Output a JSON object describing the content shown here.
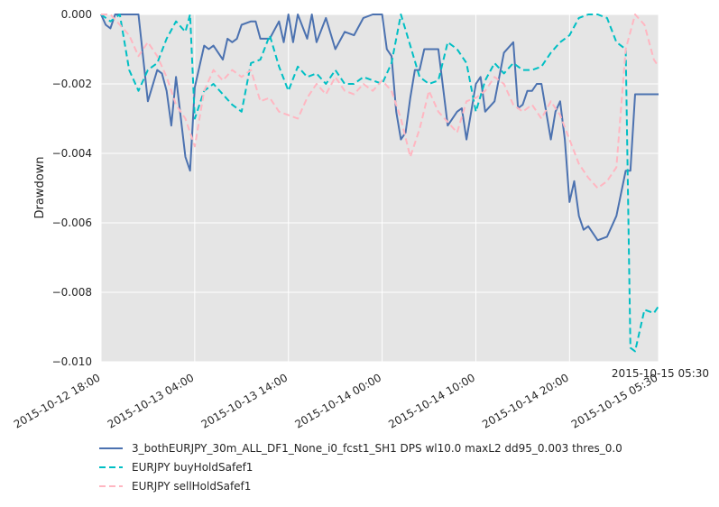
{
  "chart_data": {
    "type": "line",
    "title": "",
    "xlabel": "",
    "ylabel": "Drawdown",
    "x_start": "2015-10-12 18:00",
    "x_end": "2015-10-15 05:30",
    "x_corner_label": "2015-10-15 05:30",
    "x_ticks": [
      {
        "t": "2015-10-12 18:00",
        "label": "2015-10-12 18:00"
      },
      {
        "t": "2015-10-13 04:00",
        "label": "2015-10-13 04:00"
      },
      {
        "t": "2015-10-13 14:00",
        "label": "2015-10-13 14:00"
      },
      {
        "t": "2015-10-14 00:00",
        "label": "2015-10-14 00:00"
      },
      {
        "t": "2015-10-14 10:00",
        "label": "2015-10-14 10:00"
      },
      {
        "t": "2015-10-14 20:00",
        "label": "2015-10-14 20:00"
      },
      {
        "t": "2015-10-15 05:30",
        "label": "2015-10-15 05:30"
      }
    ],
    "ylim": [
      -0.01,
      0.0
    ],
    "y_ticks": [
      0.0,
      -0.002,
      -0.004,
      -0.006,
      -0.008,
      -0.01
    ],
    "y_tick_labels": [
      "0.000",
      "−0.002",
      "−0.004",
      "−0.006",
      "−0.008",
      "−0.010"
    ],
    "grid": true,
    "background": "#e5e5e5",
    "legend_position": "below",
    "series": [
      {
        "name": "3_bothEURJPY_30m_ALL_DF1_None_i0_fcst1_SH1 DPS wl10.0 maxL2 dd95_0.003 thres_0.0",
        "color": "#4c72b0",
        "style": "solid",
        "x": [
          "2015-10-12 18:00",
          "2015-10-12 18:30",
          "2015-10-12 19:00",
          "2015-10-12 19:30",
          "2015-10-12 20:00",
          "2015-10-12 21:00",
          "2015-10-12 22:00",
          "2015-10-12 23:00",
          "2015-10-13 00:00",
          "2015-10-13 00:30",
          "2015-10-13 01:00",
          "2015-10-13 01:30",
          "2015-10-13 02:00",
          "2015-10-13 03:00",
          "2015-10-13 03:30",
          "2015-10-13 04:00",
          "2015-10-13 05:00",
          "2015-10-13 05:30",
          "2015-10-13 06:00",
          "2015-10-13 07:00",
          "2015-10-13 07:30",
          "2015-10-13 08:00",
          "2015-10-13 08:30",
          "2015-10-13 09:00",
          "2015-10-13 10:00",
          "2015-10-13 10:30",
          "2015-10-13 11:00",
          "2015-10-13 12:00",
          "2015-10-13 13:00",
          "2015-10-13 13:30",
          "2015-10-13 14:00",
          "2015-10-13 14:30",
          "2015-10-13 15:00",
          "2015-10-13 16:00",
          "2015-10-13 16:30",
          "2015-10-13 17:00",
          "2015-10-13 18:00",
          "2015-10-13 19:00",
          "2015-10-13 20:00",
          "2015-10-13 21:00",
          "2015-10-13 22:00",
          "2015-10-13 23:00",
          "2015-10-14 00:00",
          "2015-10-14 00:30",
          "2015-10-14 01:00",
          "2015-10-14 01:30",
          "2015-10-14 02:00",
          "2015-10-14 02:30",
          "2015-10-14 03:00",
          "2015-10-14 03:30",
          "2015-10-14 04:00",
          "2015-10-14 04:30",
          "2015-10-14 05:00",
          "2015-10-14 05:30",
          "2015-10-14 06:00",
          "2015-10-14 07:00",
          "2015-10-14 08:00",
          "2015-10-14 08:30",
          "2015-10-14 09:00",
          "2015-10-14 09:30",
          "2015-10-14 10:00",
          "2015-10-14 10:30",
          "2015-10-14 11:00",
          "2015-10-14 12:00",
          "2015-10-14 13:00",
          "2015-10-14 14:00",
          "2015-10-14 14:30",
          "2015-10-14 15:00",
          "2015-10-14 15:30",
          "2015-10-14 16:00",
          "2015-10-14 16:30",
          "2015-10-14 17:00",
          "2015-10-14 18:00",
          "2015-10-14 18:30",
          "2015-10-14 19:00",
          "2015-10-14 19:30",
          "2015-10-14 20:00",
          "2015-10-14 20:30",
          "2015-10-14 21:00",
          "2015-10-14 21:30",
          "2015-10-14 22:00",
          "2015-10-14 23:00",
          "2015-10-15 00:00",
          "2015-10-15 01:00",
          "2015-10-15 02:00",
          "2015-10-15 02:30",
          "2015-10-15 03:00",
          "2015-10-15 05:30"
        ],
        "values": [
          0.0,
          -0.0003,
          -0.0004,
          0.0,
          0.0,
          0.0,
          0.0,
          -0.0025,
          -0.0016,
          -0.0017,
          -0.0022,
          -0.0032,
          -0.0018,
          -0.0041,
          -0.0045,
          -0.0021,
          -0.0009,
          -0.001,
          -0.0009,
          -0.0013,
          -0.0007,
          -0.0008,
          -0.0007,
          -0.0003,
          -0.0002,
          -0.0002,
          -0.0007,
          -0.0007,
          -0.0002,
          -0.0008,
          0.0,
          -0.0008,
          0.0,
          -0.0007,
          0.0,
          -0.0008,
          -0.0001,
          -0.001,
          -0.0005,
          -0.0006,
          -0.0001,
          0.0,
          0.0,
          -0.001,
          -0.0012,
          -0.0028,
          -0.0036,
          -0.0034,
          -0.0024,
          -0.0016,
          -0.0016,
          -0.001,
          -0.001,
          -0.001,
          -0.001,
          -0.0032,
          -0.0028,
          -0.0027,
          -0.0036,
          -0.0028,
          -0.002,
          -0.0018,
          -0.0028,
          -0.0025,
          -0.0011,
          -0.0008,
          -0.0027,
          -0.0026,
          -0.0022,
          -0.0022,
          -0.002,
          -0.002,
          -0.0036,
          -0.0028,
          -0.0025,
          -0.0036,
          -0.0054,
          -0.0048,
          -0.0058,
          -0.0062,
          -0.0061,
          -0.0065,
          -0.0064,
          -0.0058,
          -0.0045,
          -0.0045,
          -0.0023,
          -0.0023
        ]
      },
      {
        "name": "EURJPY buyHoldSafef1",
        "color": "#00bfc4",
        "style": "dashed",
        "x": [
          "2015-10-12 18:00",
          "2015-10-12 19:00",
          "2015-10-12 20:00",
          "2015-10-12 21:00",
          "2015-10-12 22:00",
          "2015-10-12 23:00",
          "2015-10-13 00:00",
          "2015-10-13 01:00",
          "2015-10-13 02:00",
          "2015-10-13 03:00",
          "2015-10-13 03:30",
          "2015-10-13 04:00",
          "2015-10-13 05:00",
          "2015-10-13 06:00",
          "2015-10-13 07:00",
          "2015-10-13 08:00",
          "2015-10-13 09:00",
          "2015-10-13 10:00",
          "2015-10-13 11:00",
          "2015-10-13 12:00",
          "2015-10-13 13:00",
          "2015-10-13 14:00",
          "2015-10-13 15:00",
          "2015-10-13 16:00",
          "2015-10-13 17:00",
          "2015-10-13 18:00",
          "2015-10-13 19:00",
          "2015-10-13 20:00",
          "2015-10-13 21:00",
          "2015-10-13 22:00",
          "2015-10-13 23:00",
          "2015-10-14 00:00",
          "2015-10-14 01:00",
          "2015-10-14 02:00",
          "2015-10-14 03:00",
          "2015-10-14 04:00",
          "2015-10-14 05:00",
          "2015-10-14 06:00",
          "2015-10-14 07:00",
          "2015-10-14 08:00",
          "2015-10-14 09:00",
          "2015-10-14 10:00",
          "2015-10-14 11:00",
          "2015-10-14 12:00",
          "2015-10-14 13:00",
          "2015-10-14 14:00",
          "2015-10-14 15:00",
          "2015-10-14 16:00",
          "2015-10-14 17:00",
          "2015-10-14 18:00",
          "2015-10-14 19:00",
          "2015-10-14 20:00",
          "2015-10-14 21:00",
          "2015-10-14 22:00",
          "2015-10-14 23:00",
          "2015-10-15 00:00",
          "2015-10-15 01:00",
          "2015-10-15 02:00",
          "2015-10-15 02:30",
          "2015-10-15 03:00",
          "2015-10-15 04:00",
          "2015-10-15 05:00",
          "2015-10-15 05:30"
        ],
        "values": [
          0.0,
          -0.0002,
          0.0,
          -0.0016,
          -0.0022,
          -0.0016,
          -0.0014,
          -0.0007,
          -0.0002,
          -0.0005,
          0.0,
          -0.003,
          -0.0022,
          -0.002,
          -0.0023,
          -0.0026,
          -0.0028,
          -0.0014,
          -0.0013,
          -0.0006,
          -0.0015,
          -0.0022,
          -0.0015,
          -0.0018,
          -0.0017,
          -0.002,
          -0.0016,
          -0.002,
          -0.002,
          -0.0018,
          -0.0019,
          -0.002,
          -0.0014,
          0.0,
          -0.0009,
          -0.0018,
          -0.002,
          -0.0019,
          -0.0008,
          -0.001,
          -0.0014,
          -0.0028,
          -0.0019,
          -0.0014,
          -0.0017,
          -0.0014,
          -0.0016,
          -0.0016,
          -0.0015,
          -0.0011,
          -0.0008,
          -0.0006,
          -0.0001,
          0.0,
          0.0,
          -0.0001,
          -0.0008,
          -0.001,
          -0.0096,
          -0.0097,
          -0.0085,
          -0.0086,
          -0.0084
        ]
      },
      {
        "name": "EURJPY sellHoldSafef1",
        "color": "#ffb6c1",
        "style": "dashed",
        "x": [
          "2015-10-12 18:00",
          "2015-10-12 19:00",
          "2015-10-12 20:00",
          "2015-10-12 21:00",
          "2015-10-12 22:00",
          "2015-10-12 23:00",
          "2015-10-13 00:00",
          "2015-10-13 01:00",
          "2015-10-13 02:00",
          "2015-10-13 03:00",
          "2015-10-13 04:00",
          "2015-10-13 05:00",
          "2015-10-13 06:00",
          "2015-10-13 07:00",
          "2015-10-13 08:00",
          "2015-10-13 09:00",
          "2015-10-13 10:00",
          "2015-10-13 11:00",
          "2015-10-13 12:00",
          "2015-10-13 13:00",
          "2015-10-13 14:00",
          "2015-10-13 15:00",
          "2015-10-13 16:00",
          "2015-10-13 17:00",
          "2015-10-13 18:00",
          "2015-10-13 19:00",
          "2015-10-13 20:00",
          "2015-10-13 21:00",
          "2015-10-13 22:00",
          "2015-10-13 23:00",
          "2015-10-14 00:00",
          "2015-10-14 01:00",
          "2015-10-14 02:00",
          "2015-10-14 03:00",
          "2015-10-14 04:00",
          "2015-10-14 05:00",
          "2015-10-14 06:00",
          "2015-10-14 07:00",
          "2015-10-14 08:00",
          "2015-10-14 09:00",
          "2015-10-14 10:00",
          "2015-10-14 11:00",
          "2015-10-14 12:00",
          "2015-10-14 13:00",
          "2015-10-14 14:00",
          "2015-10-14 15:00",
          "2015-10-14 16:00",
          "2015-10-14 17:00",
          "2015-10-14 18:00",
          "2015-10-14 19:00",
          "2015-10-14 20:00",
          "2015-10-14 21:00",
          "2015-10-14 22:00",
          "2015-10-14 23:00",
          "2015-10-15 00:00",
          "2015-10-15 01:00",
          "2015-10-15 02:00",
          "2015-10-15 03:00",
          "2015-10-15 04:00",
          "2015-10-15 05:00",
          "2015-10-15 05:30"
        ],
        "values": [
          0.0,
          0.0,
          -0.0003,
          -0.0006,
          -0.0012,
          -0.0008,
          -0.0012,
          -0.0018,
          -0.0026,
          -0.003,
          -0.0038,
          -0.0022,
          -0.0016,
          -0.0019,
          -0.0016,
          -0.0018,
          -0.0016,
          -0.0025,
          -0.0024,
          -0.0028,
          -0.0029,
          -0.003,
          -0.0024,
          -0.002,
          -0.0023,
          -0.0018,
          -0.0022,
          -0.0023,
          -0.002,
          -0.0022,
          -0.0019,
          -0.0022,
          -0.003,
          -0.0041,
          -0.0033,
          -0.0022,
          -0.0028,
          -0.0031,
          -0.0034,
          -0.0025,
          -0.0024,
          -0.0022,
          -0.0018,
          -0.002,
          -0.0026,
          -0.0028,
          -0.0026,
          -0.003,
          -0.0025,
          -0.0029,
          -0.0036,
          -0.0043,
          -0.0047,
          -0.005,
          -0.0048,
          -0.0044,
          -0.001,
          0.0,
          -0.0003,
          -0.0013,
          -0.0015
        ]
      }
    ]
  }
}
